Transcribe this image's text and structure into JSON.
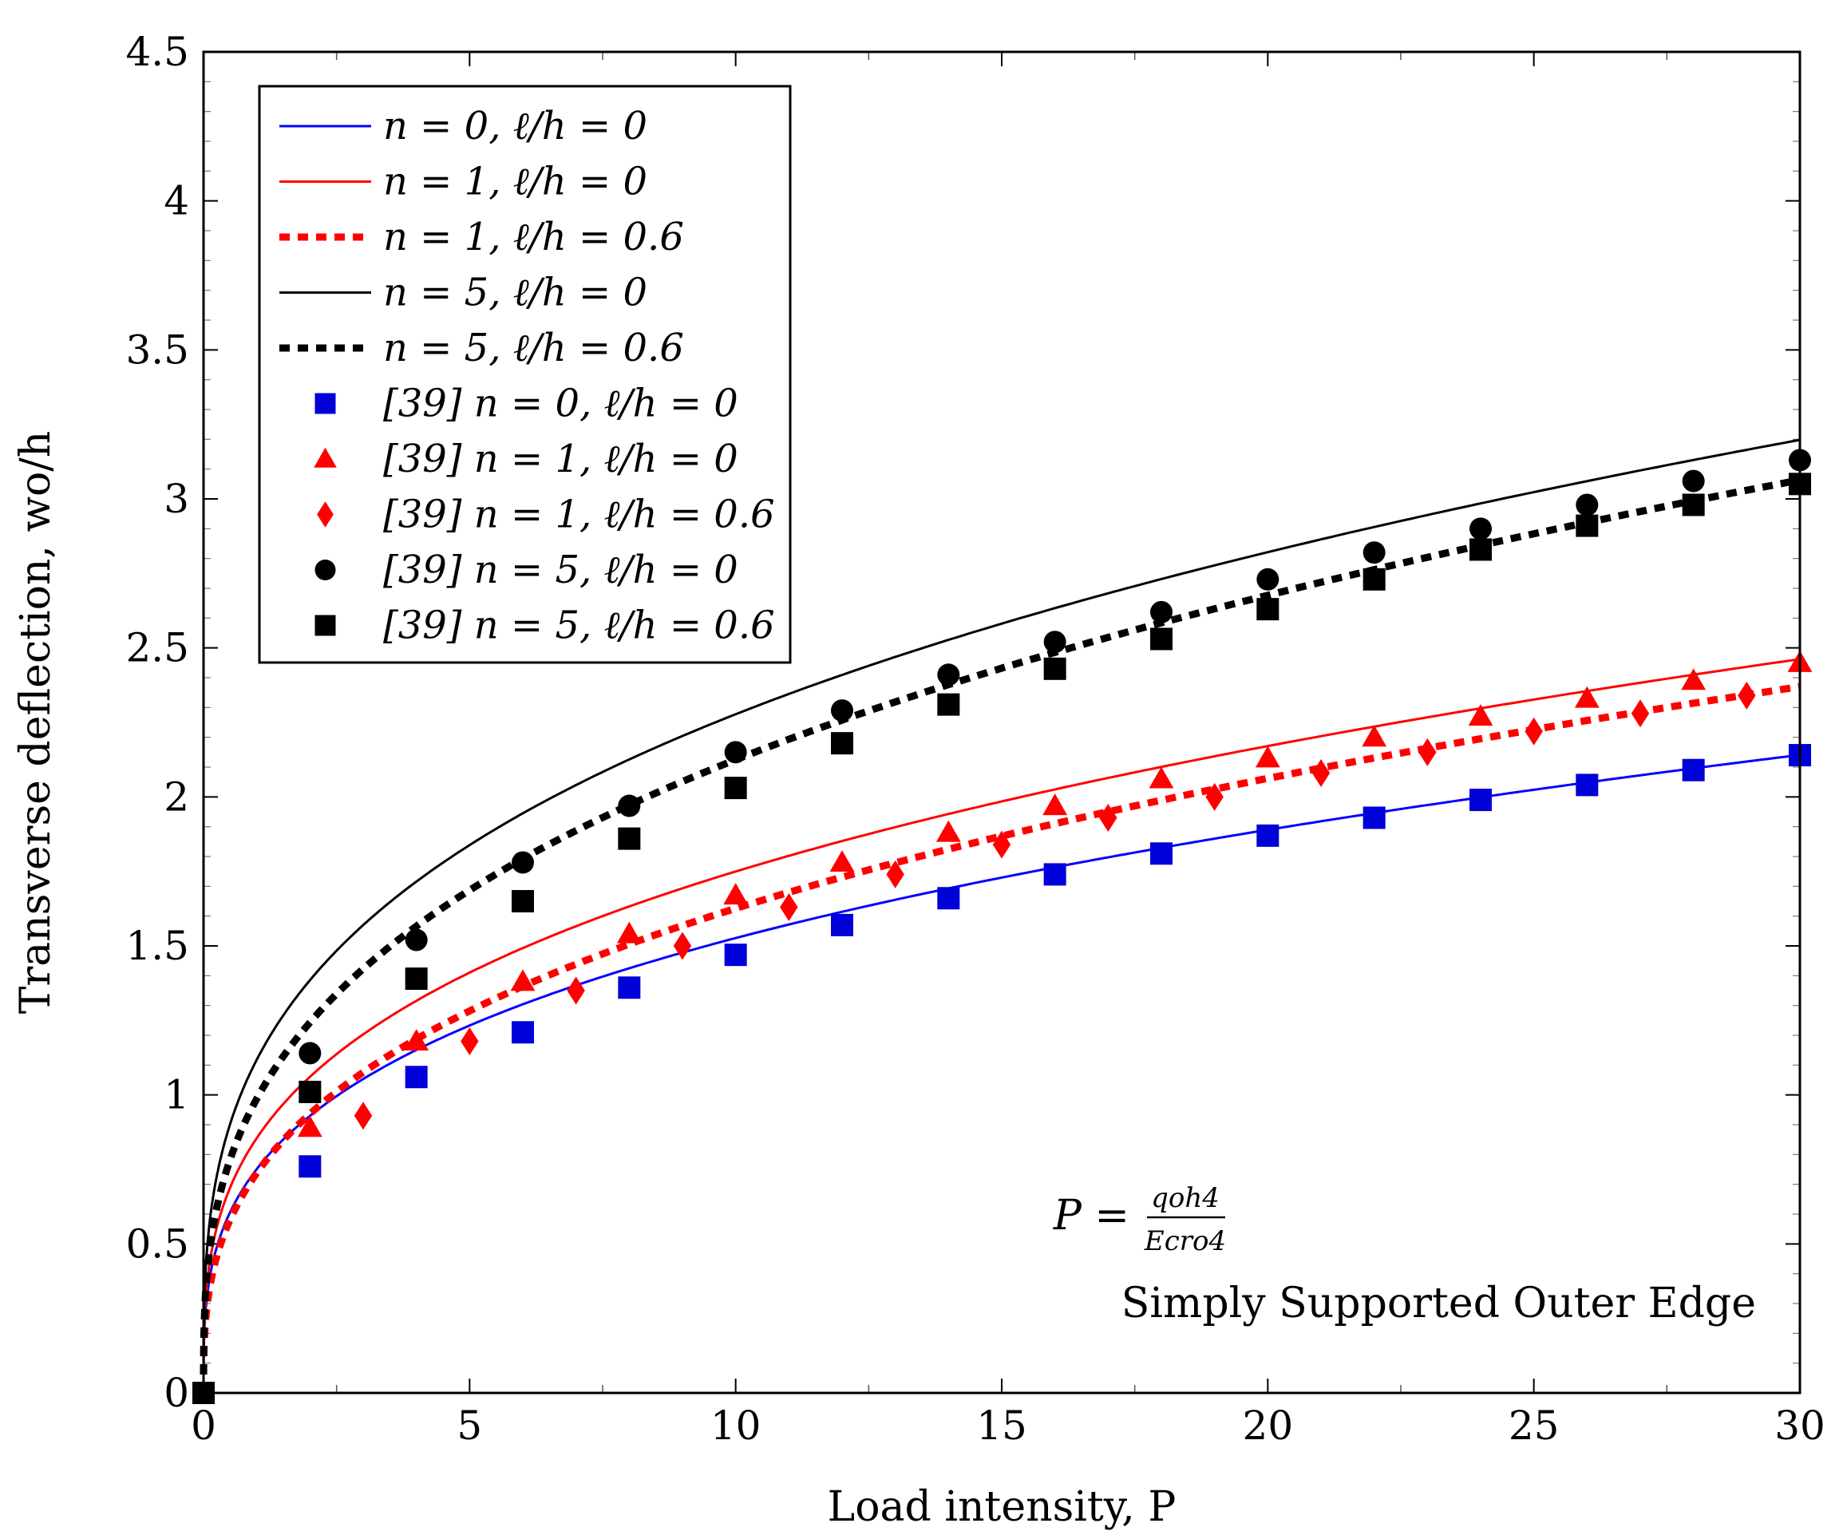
{
  "chart_data": {
    "type": "line",
    "title": "",
    "xlabel": "Load intensity, P",
    "ylabel": "Transverse deflection, wo/h",
    "xlim": [
      0,
      30
    ],
    "ylim": [
      0,
      4.5
    ],
    "x_ticks": [
      0,
      5,
      10,
      15,
      20,
      25,
      30
    ],
    "y_ticks": [
      0,
      0.5,
      1,
      1.5,
      2,
      2.5,
      3,
      3.5,
      4,
      4.5
    ],
    "x_tick_labels": [
      "0",
      "5",
      "10",
      "15",
      "20",
      "25",
      "30"
    ],
    "y_tick_labels": [
      "0",
      "0.5",
      "1",
      "1.5",
      "2",
      "2.5",
      "3",
      "3.5",
      "4",
      "4.5"
    ],
    "legend_position": "top-left",
    "curve_model": "y = a * x^b",
    "series": [
      {
        "name": "n = 0, ℓ/h = 0",
        "style": "solid",
        "color": "#0000ff",
        "a": 0.751,
        "b": 0.308
      },
      {
        "name": "n = 1, ℓ/h = 0",
        "style": "solid",
        "color": "#ff0000",
        "a": 0.855,
        "b": 0.311
      },
      {
        "name": "n = 1, ℓ/h = 0.6",
        "style": "dotted",
        "color": "#ff0000",
        "a": 0.738,
        "b": 0.343
      },
      {
        "name": "n = 5, ℓ/h = 0",
        "style": "solid",
        "color": "#000000",
        "a": 1.118,
        "b": 0.309
      },
      {
        "name": "n = 5, ℓ/h = 0.6",
        "style": "dotted",
        "color": "#000000",
        "a": 0.987,
        "b": 0.333
      },
      {
        "name": "[39] n = 0, ℓ/h = 0",
        "style": "marker",
        "marker": "square",
        "color": "#0000d8",
        "x": [
          0,
          2,
          4,
          6,
          8,
          10,
          12,
          14,
          16,
          18,
          20,
          22,
          24,
          26,
          28,
          30
        ],
        "y": [
          0,
          0.76,
          1.06,
          1.21,
          1.36,
          1.47,
          1.57,
          1.66,
          1.74,
          1.81,
          1.87,
          1.93,
          1.99,
          2.04,
          2.09,
          2.14
        ]
      },
      {
        "name": "[39] n = 1, ℓ/h = 0",
        "style": "marker",
        "marker": "triangle",
        "color": "#ff0000",
        "x": [
          2,
          4,
          6,
          8,
          10,
          12,
          14,
          16,
          18,
          20,
          22,
          24,
          26,
          28,
          30
        ],
        "y": [
          0.89,
          1.18,
          1.38,
          1.54,
          1.67,
          1.78,
          1.88,
          1.97,
          2.06,
          2.13,
          2.2,
          2.27,
          2.33,
          2.39,
          2.45
        ]
      },
      {
        "name": "[39] n = 1, ℓ/h = 0.6",
        "style": "marker",
        "marker": "diamond",
        "color": "#ff0000",
        "x": [
          3,
          5,
          7,
          9,
          11,
          13,
          15,
          17,
          19,
          21,
          23,
          25,
          27,
          29
        ],
        "y": [
          0.93,
          1.18,
          1.35,
          1.5,
          1.63,
          1.74,
          1.84,
          1.93,
          2.0,
          2.08,
          2.15,
          2.22,
          2.28,
          2.34
        ]
      },
      {
        "name": "[39] n = 5, ℓ/h = 0",
        "style": "marker",
        "marker": "circle",
        "color": "#000000",
        "x": [
          2,
          4,
          6,
          8,
          10,
          12,
          14,
          16,
          18,
          20,
          22,
          24,
          26,
          28,
          30
        ],
        "y": [
          1.14,
          1.52,
          1.78,
          1.97,
          2.15,
          2.29,
          2.41,
          2.52,
          2.62,
          2.73,
          2.82,
          2.9,
          2.98,
          3.06,
          3.13
        ]
      },
      {
        "name": "[39] n = 5, ℓ/h = 0.6",
        "style": "marker",
        "marker": "square",
        "color": "#000000",
        "x": [
          0,
          2,
          4,
          6,
          8,
          10,
          12,
          14,
          16,
          18,
          20,
          22,
          24,
          26,
          28,
          30
        ],
        "y": [
          0,
          1.01,
          1.39,
          1.65,
          1.86,
          2.03,
          2.18,
          2.31,
          2.43,
          2.53,
          2.63,
          2.73,
          2.83,
          2.91,
          2.98,
          3.05
        ]
      }
    ],
    "annotations": {
      "formula_lhs": "P =",
      "formula_num": "qoh4",
      "formula_den": "Ecro4",
      "note": "Simply Supported Outer Edge"
    }
  }
}
